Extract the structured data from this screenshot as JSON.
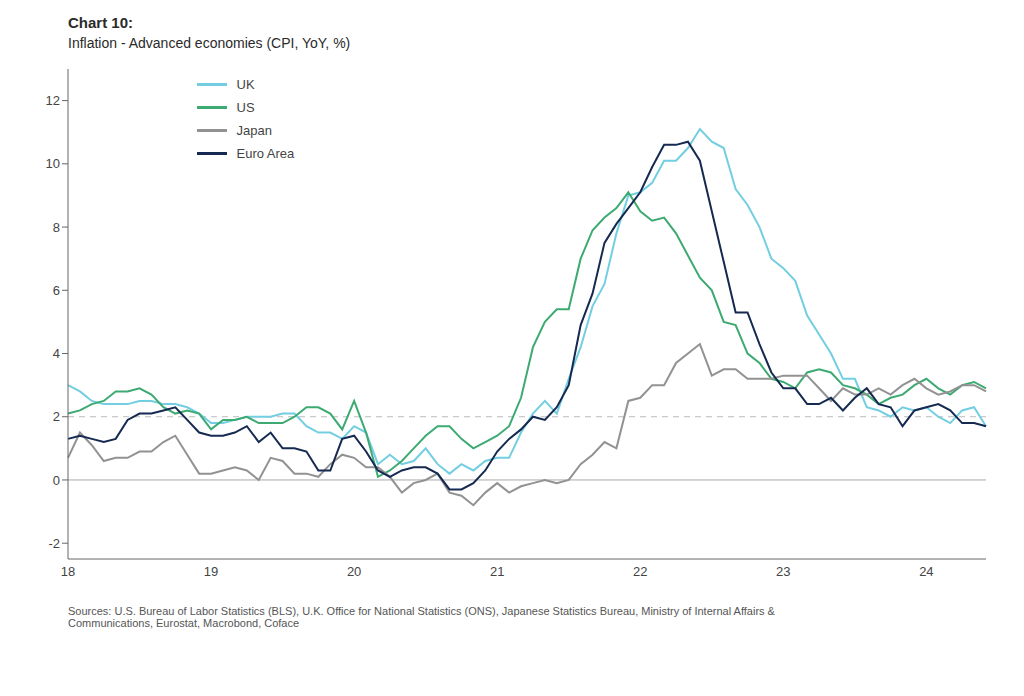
{
  "chart_data": {
    "type": "line",
    "title": "Chart 10:",
    "subtitle": "Inflation - Advanced economies (CPI, YoY, %)",
    "source": "Sources: U.S. Bureau of Labor Statistics (BLS), U.K. Office for National Statistics (ONS), Japanese Statistics Bureau, Ministry of Internal Affairs &\nCommunications, Eurostat, Macrobond, Coface",
    "categories": [
      "18",
      null,
      null,
      null,
      null,
      null,
      null,
      null,
      null,
      null,
      null,
      null,
      "19",
      null,
      null,
      null,
      null,
      null,
      null,
      null,
      null,
      null,
      null,
      null,
      "20",
      null,
      null,
      null,
      null,
      null,
      null,
      null,
      null,
      null,
      null,
      null,
      "21",
      null,
      null,
      null,
      null,
      null,
      null,
      null,
      null,
      null,
      null,
      null,
      "22",
      null,
      null,
      null,
      null,
      null,
      null,
      null,
      null,
      null,
      null,
      null,
      "23",
      null,
      null,
      null,
      null,
      null,
      null,
      null,
      null,
      null,
      null,
      null,
      "24",
      null,
      null,
      null,
      null,
      null
    ],
    "ylim": [
      -2.5,
      13.0
    ],
    "yticks": [
      -2,
      0,
      2,
      4,
      6,
      8,
      10,
      12
    ],
    "grid": false,
    "legend": "upper left",
    "reference_lines": [
      {
        "value": 2.0,
        "line_style": "dashed"
      },
      {
        "value": 0,
        "line_style": "solid"
      }
    ],
    "series": [
      {
        "name": "UK",
        "color": "#72CEE0",
        "values": [
          3.0,
          2.8,
          2.5,
          2.4,
          2.4,
          2.4,
          2.5,
          2.5,
          2.4,
          2.4,
          2.3,
          2.1,
          1.8,
          1.8,
          1.9,
          2.0,
          2.0,
          2.0,
          2.1,
          2.1,
          1.7,
          1.5,
          1.5,
          1.3,
          1.7,
          1.5,
          0.5,
          0.8,
          0.5,
          0.6,
          1.0,
          0.5,
          0.2,
          0.5,
          0.3,
          0.6,
          0.7,
          0.7,
          1.5,
          2.1,
          2.5,
          2.1,
          3.2,
          4.2,
          5.5,
          6.2,
          7.8,
          9.0,
          9.1,
          9.4,
          10.1,
          10.1,
          10.5,
          11.1,
          10.7,
          10.5,
          9.2,
          8.7,
          8.0,
          7.0,
          6.7,
          6.3,
          5.2,
          4.6,
          4.0,
          3.2,
          3.2,
          2.3,
          2.2,
          2.0,
          2.3,
          2.2,
          2.3,
          2.0,
          1.8,
          2.2,
          2.3,
          1.7
        ]
      },
      {
        "name": "US",
        "color": "#3DAA72",
        "values": [
          2.1,
          2.2,
          2.4,
          2.5,
          2.8,
          2.8,
          2.9,
          2.7,
          2.3,
          2.1,
          2.2,
          2.1,
          1.6,
          1.9,
          1.9,
          2.0,
          1.8,
          1.8,
          1.8,
          2.0,
          2.3,
          2.3,
          2.1,
          1.6,
          2.5,
          1.5,
          0.1,
          0.3,
          0.6,
          1.0,
          1.4,
          1.7,
          1.7,
          1.3,
          1.0,
          1.2,
          1.4,
          1.7,
          2.6,
          4.2,
          5.0,
          5.4,
          5.4,
          7.0,
          7.9,
          8.3,
          8.6,
          9.1,
          8.5,
          8.2,
          8.3,
          7.8,
          7.1,
          6.4,
          6.0,
          5.0,
          4.9,
          4.0,
          3.7,
          3.2,
          3.1,
          2.9,
          3.4,
          3.5,
          3.4,
          3.0,
          2.9,
          2.7,
          2.4,
          2.6,
          2.7,
          3.0,
          3.2,
          2.9,
          2.7,
          3.0,
          3.1,
          2.9
        ]
      },
      {
        "name": "Japan",
        "color": "#929292",
        "values": [
          0.7,
          1.5,
          1.1,
          0.6,
          0.7,
          0.7,
          0.9,
          0.9,
          1.2,
          1.4,
          0.8,
          0.2,
          0.2,
          0.3,
          0.4,
          0.3,
          0.0,
          0.7,
          0.6,
          0.2,
          0.2,
          0.1,
          0.5,
          0.8,
          0.7,
          0.4,
          0.4,
          0.1,
          -0.4,
          -0.1,
          0.0,
          0.2,
          -0.4,
          -0.5,
          -0.8,
          -0.4,
          -0.1,
          -0.4,
          -0.2,
          -0.1,
          0.0,
          -0.1,
          0.0,
          0.5,
          0.8,
          1.2,
          1.0,
          2.5,
          2.6,
          3.0,
          3.0,
          3.7,
          4.0,
          4.3,
          3.3,
          3.5,
          3.5,
          3.2,
          3.2,
          3.2,
          3.3,
          3.3,
          3.3,
          2.9,
          2.5,
          2.9,
          2.7,
          2.7,
          2.9,
          2.7,
          3.0,
          3.2,
          2.9,
          2.7,
          2.8,
          3.0,
          3.0,
          2.8
        ]
      },
      {
        "name": "Euro Area",
        "color": "#152951",
        "values": [
          1.3,
          1.4,
          1.3,
          1.2,
          1.3,
          1.9,
          2.1,
          2.1,
          2.2,
          2.3,
          1.9,
          1.5,
          1.4,
          1.4,
          1.5,
          1.7,
          1.2,
          1.5,
          1.0,
          1.0,
          0.9,
          0.3,
          0.3,
          1.3,
          1.4,
          0.9,
          0.3,
          0.1,
          0.3,
          0.4,
          0.4,
          0.2,
          -0.3,
          -0.3,
          -0.1,
          0.3,
          0.9,
          1.3,
          1.6,
          2.0,
          1.9,
          2.3,
          3.0,
          4.9,
          5.9,
          7.5,
          8.1,
          8.6,
          9.1,
          9.9,
          10.6,
          10.6,
          10.7,
          10.1,
          8.5,
          6.9,
          5.3,
          5.3,
          4.3,
          3.4,
          2.9,
          2.9,
          2.4,
          2.4,
          2.6,
          2.2,
          2.6,
          2.9,
          2.4,
          2.3,
          1.7,
          2.2,
          2.3,
          2.4,
          2.2,
          1.8,
          1.8,
          1.7
        ]
      }
    ]
  }
}
